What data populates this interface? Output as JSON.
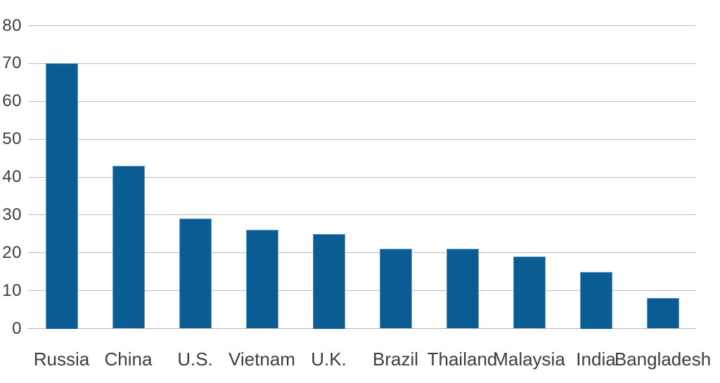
{
  "chart_data": {
    "type": "bar",
    "categories": [
      "Russia",
      "China",
      "U.S.",
      "Vietnam",
      "U.K.",
      "Brazil",
      "Thailand",
      "Malaysia",
      "India",
      "Bangladesh"
    ],
    "values": [
      70,
      43,
      29,
      26,
      25,
      21,
      21,
      19,
      15,
      8
    ],
    "yticks": [
      0,
      10,
      20,
      30,
      40,
      50,
      60,
      70,
      80
    ],
    "ylim": [
      0,
      80
    ],
    "grid": "horizontal",
    "legend": "none",
    "bar_color": "#0b5c92",
    "gridline_color": "#bdbdbd",
    "baseline_color": "#b5b5b5",
    "label_color": "#3d3d3d"
  }
}
